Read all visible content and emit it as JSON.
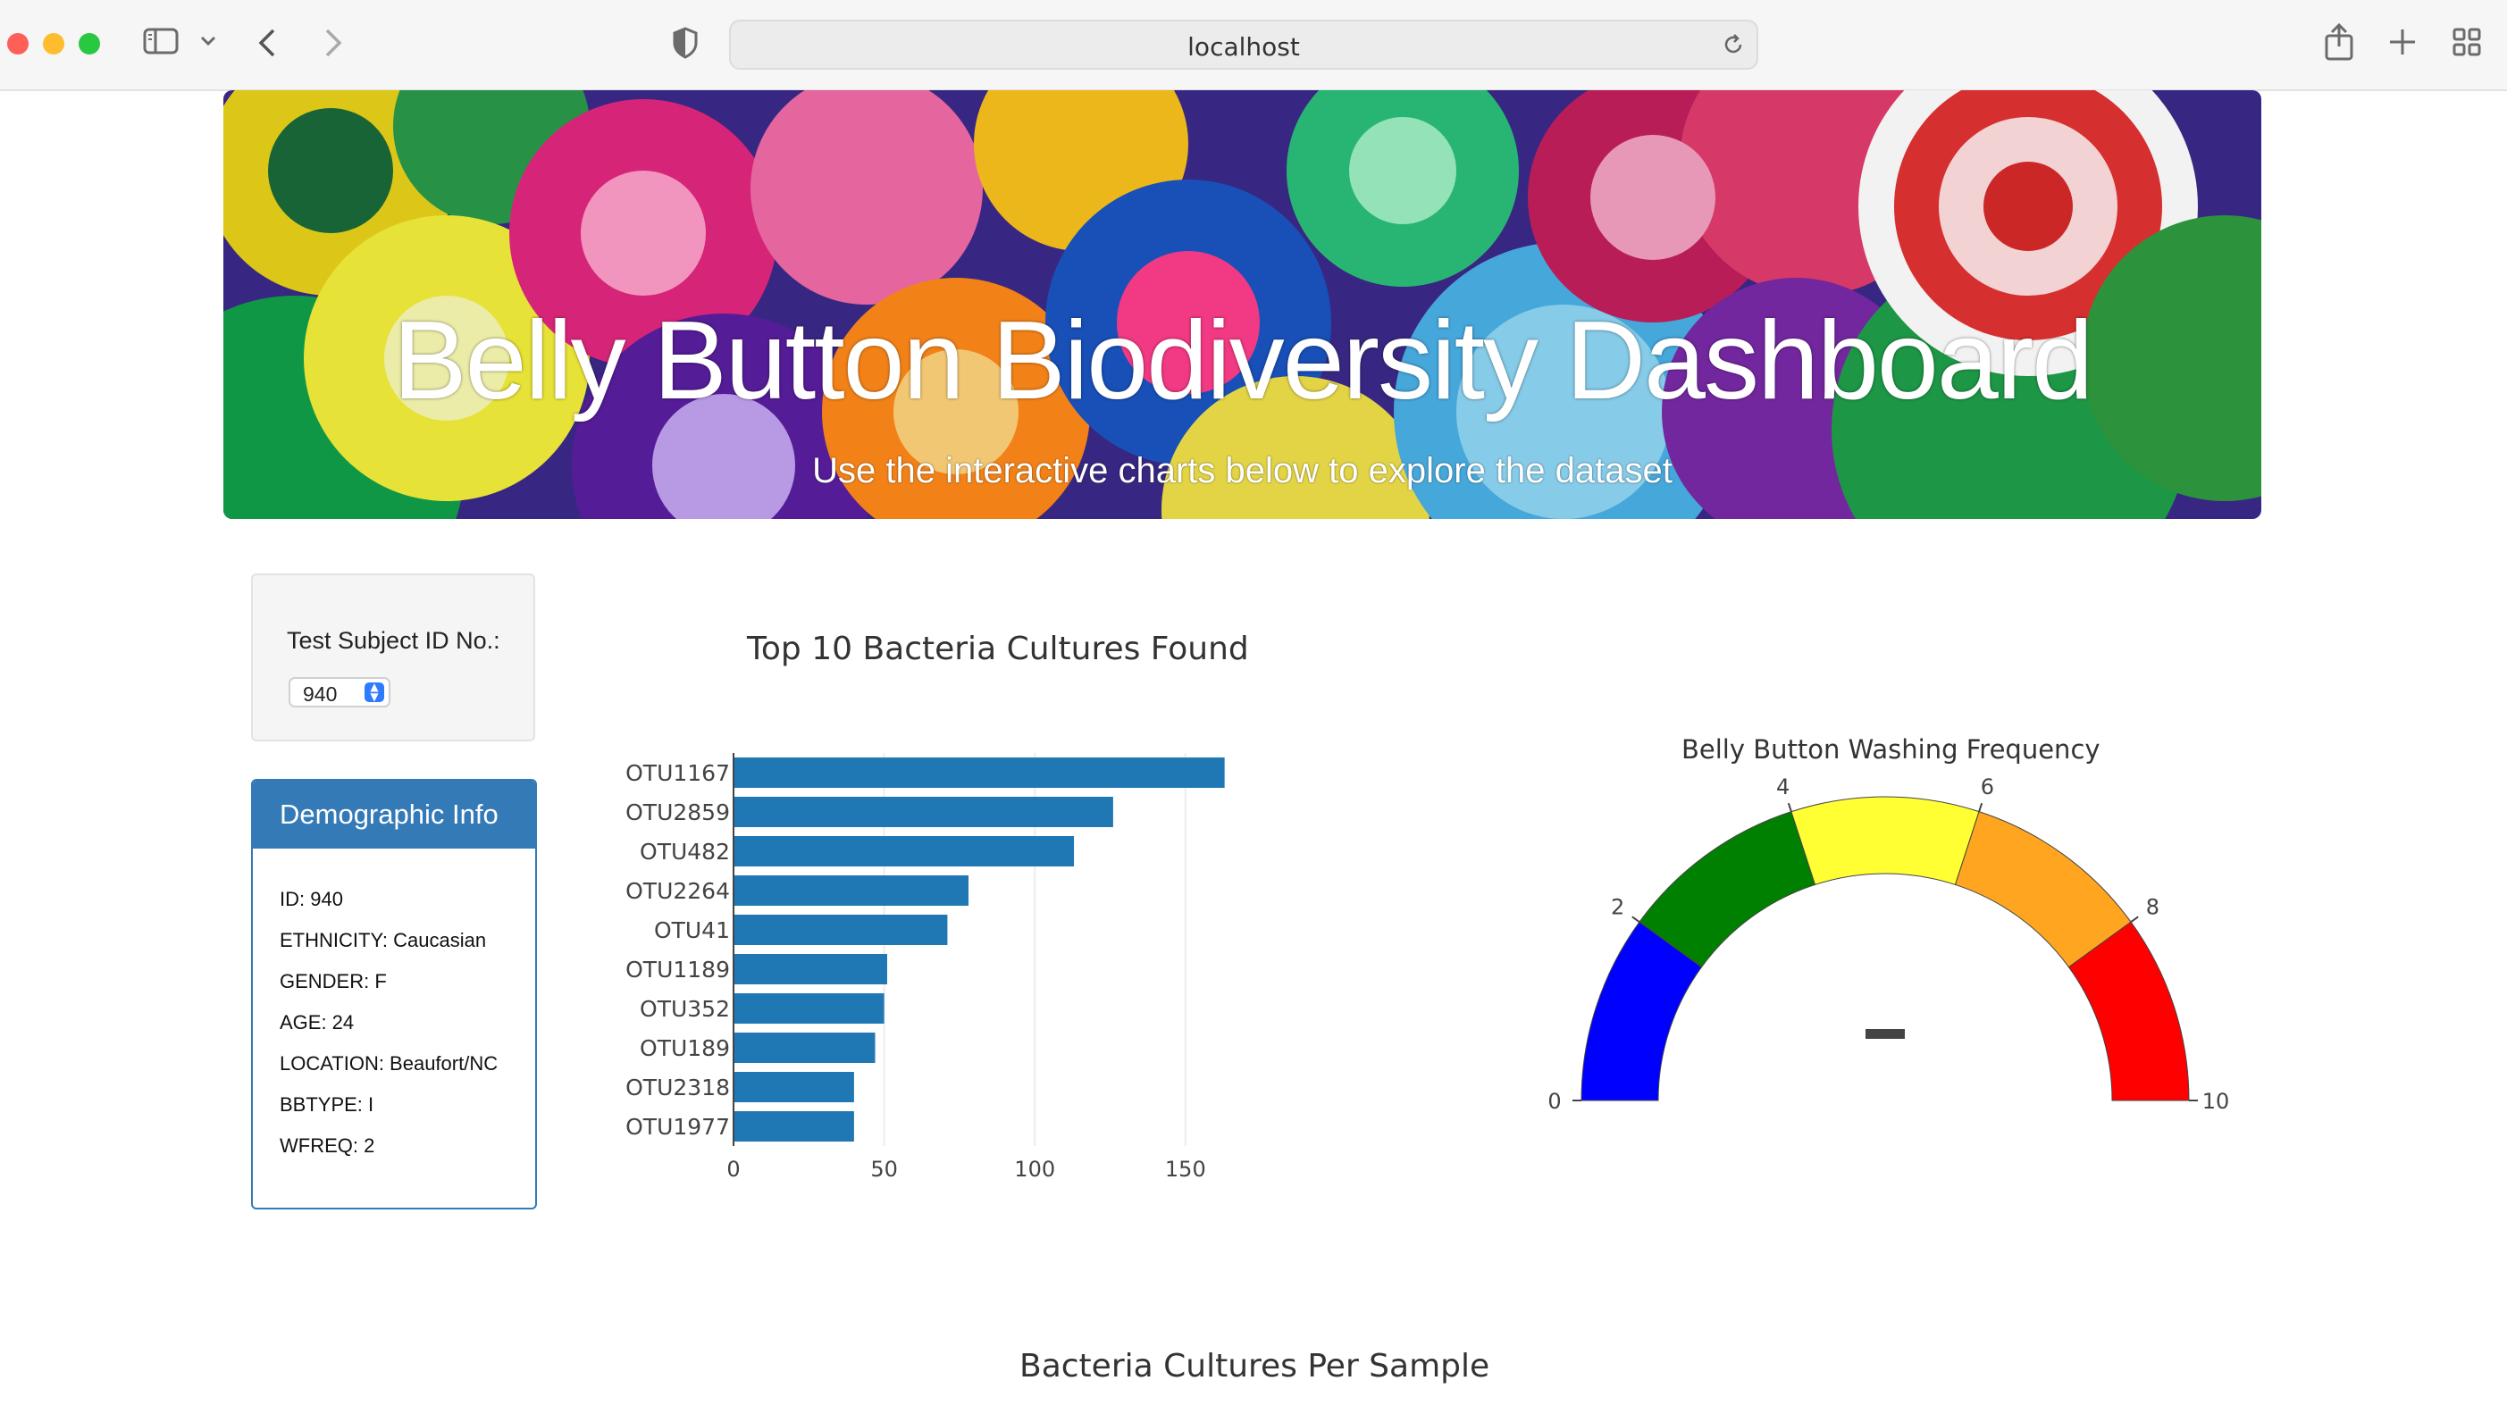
{
  "browser": {
    "url": "localhost"
  },
  "banner": {
    "title": "Belly Button Biodiversity Dashboard",
    "subtitle": "Use the interactive charts below to explore the dataset"
  },
  "selector": {
    "label": "Test Subject ID No.:",
    "value": "940"
  },
  "demographics": {
    "heading": "Demographic Info",
    "rows": [
      "ID: 940",
      "ETHNICITY: Caucasian",
      "GENDER: F",
      "AGE: 24",
      "LOCATION: Beaufort/NC",
      "BBTYPE: I",
      "WFREQ: 2"
    ]
  },
  "bar_chart_title": "Top 10 Bacteria Cultures Found",
  "gauge_title": "Belly Button Washing Frequency",
  "bubble_title": "Bacteria Cultures Per Sample",
  "colors": {
    "bar": "#1f77b4",
    "panel": "#337ab7",
    "gauge_steps": [
      "#0000ff",
      "#008000",
      "#ffff33",
      "#ffa51f",
      "#ff0000"
    ]
  },
  "chart_data": [
    {
      "type": "bar",
      "orientation": "horizontal",
      "title": "Top 10 Bacteria Cultures Found",
      "categories": [
        "OTU1167",
        "OTU2859",
        "OTU482",
        "OTU2264",
        "OTU41",
        "OTU1189",
        "OTU352",
        "OTU189",
        "OTU2318",
        "OTU1977"
      ],
      "values": [
        163,
        126,
        113,
        78,
        71,
        51,
        50,
        47,
        40,
        40
      ],
      "xticks": [
        0,
        50,
        100,
        150
      ],
      "xlim": [
        0,
        172
      ],
      "grid": true
    },
    {
      "type": "gauge",
      "title": "Belly Button Washing Frequency",
      "range": [
        0,
        10
      ],
      "ticks": [
        0,
        2,
        4,
        6,
        8,
        10
      ],
      "steps": [
        [
          0,
          2
        ],
        [
          2,
          4
        ],
        [
          4,
          6
        ],
        [
          6,
          8
        ],
        [
          8,
          10
        ]
      ],
      "value": 2
    }
  ]
}
